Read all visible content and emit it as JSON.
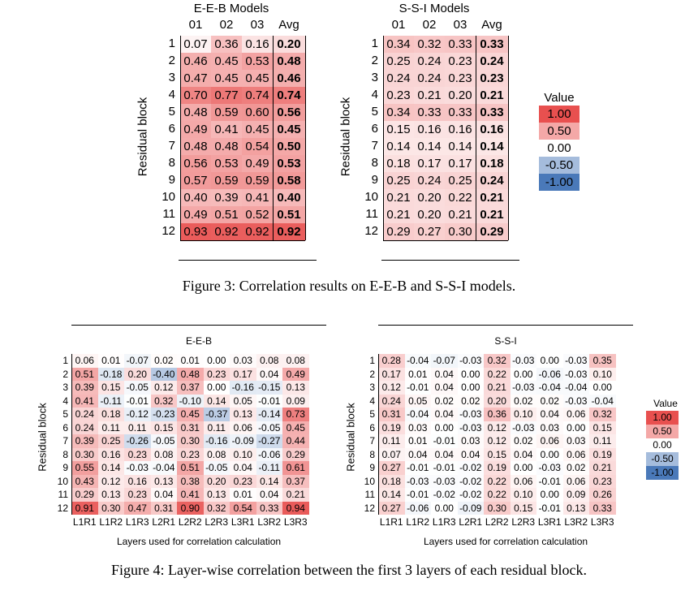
{
  "figure3": {
    "caption": "Figure 3: Correlation results on E-E-B and S-S-I models.",
    "ylabel": "Residual block",
    "left": {
      "title": "E-E-B Models",
      "columns": [
        "01",
        "02",
        "03",
        "Avg"
      ],
      "rows": [
        "1",
        "2",
        "3",
        "4",
        "5",
        "6",
        "7",
        "8",
        "9",
        "10",
        "11",
        "12"
      ],
      "values": [
        [
          0.07,
          0.36,
          0.16,
          0.2
        ],
        [
          0.46,
          0.45,
          0.53,
          0.48
        ],
        [
          0.47,
          0.45,
          0.45,
          0.46
        ],
        [
          0.7,
          0.77,
          0.74,
          0.74
        ],
        [
          0.48,
          0.59,
          0.6,
          0.56
        ],
        [
          0.49,
          0.41,
          0.45,
          0.45
        ],
        [
          0.48,
          0.48,
          0.54,
          0.5
        ],
        [
          0.56,
          0.53,
          0.49,
          0.53
        ],
        [
          0.57,
          0.59,
          0.59,
          0.58
        ],
        [
          0.4,
          0.39,
          0.41,
          0.4
        ],
        [
          0.49,
          0.51,
          0.52,
          0.51
        ],
        [
          0.93,
          0.92,
          0.92,
          0.92
        ]
      ]
    },
    "right": {
      "title": "S-S-I Models",
      "columns": [
        "01",
        "02",
        "03",
        "Avg"
      ],
      "rows": [
        "1",
        "2",
        "3",
        "4",
        "5",
        "6",
        "7",
        "8",
        "9",
        "10",
        "11",
        "12"
      ],
      "values": [
        [
          0.34,
          0.32,
          0.33,
          0.33
        ],
        [
          0.25,
          0.24,
          0.23,
          0.24
        ],
        [
          0.24,
          0.24,
          0.23,
          0.23
        ],
        [
          0.23,
          0.21,
          0.2,
          0.21
        ],
        [
          0.34,
          0.33,
          0.33,
          0.33
        ],
        [
          0.15,
          0.16,
          0.16,
          0.16
        ],
        [
          0.14,
          0.14,
          0.14,
          0.14
        ],
        [
          0.18,
          0.17,
          0.17,
          0.18
        ],
        [
          0.25,
          0.24,
          0.25,
          0.24
        ],
        [
          0.21,
          0.2,
          0.22,
          0.21
        ],
        [
          0.21,
          0.2,
          0.21,
          0.21
        ],
        [
          0.29,
          0.27,
          0.3,
          0.29
        ]
      ]
    },
    "legend": {
      "title": "Value",
      "items": [
        "1.00",
        "0.50",
        "0.00",
        "-0.50",
        "-1.00"
      ],
      "levels": [
        1.0,
        0.5,
        0.0,
        -0.5,
        -1.0
      ]
    }
  },
  "figure4": {
    "caption": "Figure 4: Layer-wise correlation between the first 3 layers of each residual block.",
    "ylabel": "Residual block",
    "xlabel": "Layers used for correlation calculation",
    "columns": [
      "L1R1",
      "L1R2",
      "L1R3",
      "L2R1",
      "L2R2",
      "L2R3",
      "L3R1",
      "L3R2",
      "L3R3"
    ],
    "rows": [
      "1",
      "2",
      "3",
      "4",
      "5",
      "6",
      "7",
      "8",
      "9",
      "10",
      "11",
      "12"
    ],
    "left": {
      "title": "E-E-B",
      "values": [
        [
          0.06,
          0.01,
          -0.07,
          0.02,
          0.01,
          0.0,
          0.03,
          0.08,
          0.08
        ],
        [
          0.51,
          -0.18,
          0.2,
          -0.4,
          0.48,
          0.23,
          0.17,
          0.04,
          0.49
        ],
        [
          0.39,
          0.15,
          -0.05,
          0.12,
          0.37,
          0.0,
          -0.16,
          -0.15,
          0.13
        ],
        [
          0.41,
          -0.11,
          -0.01,
          0.32,
          -0.1,
          0.14,
          0.05,
          -0.01,
          0.09
        ],
        [
          0.24,
          0.18,
          -0.12,
          -0.23,
          0.45,
          -0.37,
          0.13,
          -0.14,
          0.73
        ],
        [
          0.24,
          0.11,
          0.11,
          0.15,
          0.31,
          0.11,
          0.06,
          -0.05,
          0.45
        ],
        [
          0.39,
          0.25,
          -0.26,
          -0.05,
          0.3,
          -0.16,
          -0.09,
          -0.27,
          0.44
        ],
        [
          0.3,
          0.16,
          0.23,
          0.08,
          0.23,
          0.08,
          0.1,
          -0.06,
          0.29
        ],
        [
          0.55,
          0.14,
          -0.03,
          -0.04,
          0.51,
          -0.05,
          0.04,
          -0.11,
          0.61
        ],
        [
          0.43,
          0.12,
          0.16,
          0.13,
          0.38,
          0.2,
          0.23,
          0.14,
          0.37
        ],
        [
          0.29,
          0.13,
          0.23,
          0.04,
          0.41,
          0.13,
          0.01,
          0.04,
          0.21
        ],
        [
          0.91,
          0.3,
          0.47,
          0.31,
          0.9,
          0.32,
          0.54,
          0.33,
          0.94
        ]
      ]
    },
    "right": {
      "title": "S-S-I",
      "values": [
        [
          0.28,
          -0.04,
          -0.07,
          -0.03,
          0.32,
          -0.03,
          0.0,
          -0.03,
          0.35
        ],
        [
          0.17,
          0.01,
          0.04,
          0.0,
          0.22,
          0.0,
          -0.06,
          -0.03,
          0.1
        ],
        [
          0.12,
          -0.01,
          0.04,
          0.0,
          0.21,
          -0.03,
          -0.04,
          -0.04,
          0.0
        ],
        [
          0.24,
          0.05,
          0.02,
          0.02,
          0.2,
          0.02,
          0.02,
          -0.03,
          -0.04
        ],
        [
          0.31,
          -0.04,
          0.04,
          -0.03,
          0.36,
          0.1,
          0.04,
          0.06,
          0.32
        ],
        [
          0.19,
          0.03,
          0.0,
          -0.03,
          0.12,
          -0.03,
          0.03,
          0.0,
          0.15
        ],
        [
          0.11,
          0.01,
          -0.01,
          0.03,
          0.12,
          0.02,
          0.06,
          0.03,
          0.11
        ],
        [
          0.07,
          0.04,
          0.04,
          0.04,
          0.15,
          0.04,
          0.0,
          0.06,
          0.19
        ],
        [
          0.27,
          -0.01,
          -0.01,
          -0.02,
          0.19,
          0.0,
          -0.03,
          0.02,
          0.21
        ],
        [
          0.18,
          -0.03,
          -0.03,
          -0.02,
          0.22,
          0.06,
          -0.01,
          0.06,
          0.23
        ],
        [
          0.14,
          -0.01,
          -0.02,
          -0.02,
          0.22,
          0.1,
          0.0,
          0.09,
          0.26
        ],
        [
          0.27,
          -0.06,
          0.0,
          -0.09,
          0.3,
          0.15,
          -0.01,
          0.13,
          0.33
        ]
      ]
    },
    "legend": {
      "title": "Value",
      "items": [
        "1.00",
        "0.50",
        "0.00",
        "-0.50",
        "-1.00"
      ],
      "levels": [
        1.0,
        0.5,
        0.0,
        -0.5,
        -1.0
      ]
    }
  },
  "colors": {
    "positive": "#e8504f",
    "negative": "#4a79b9",
    "neutral": "#ffffff"
  }
}
